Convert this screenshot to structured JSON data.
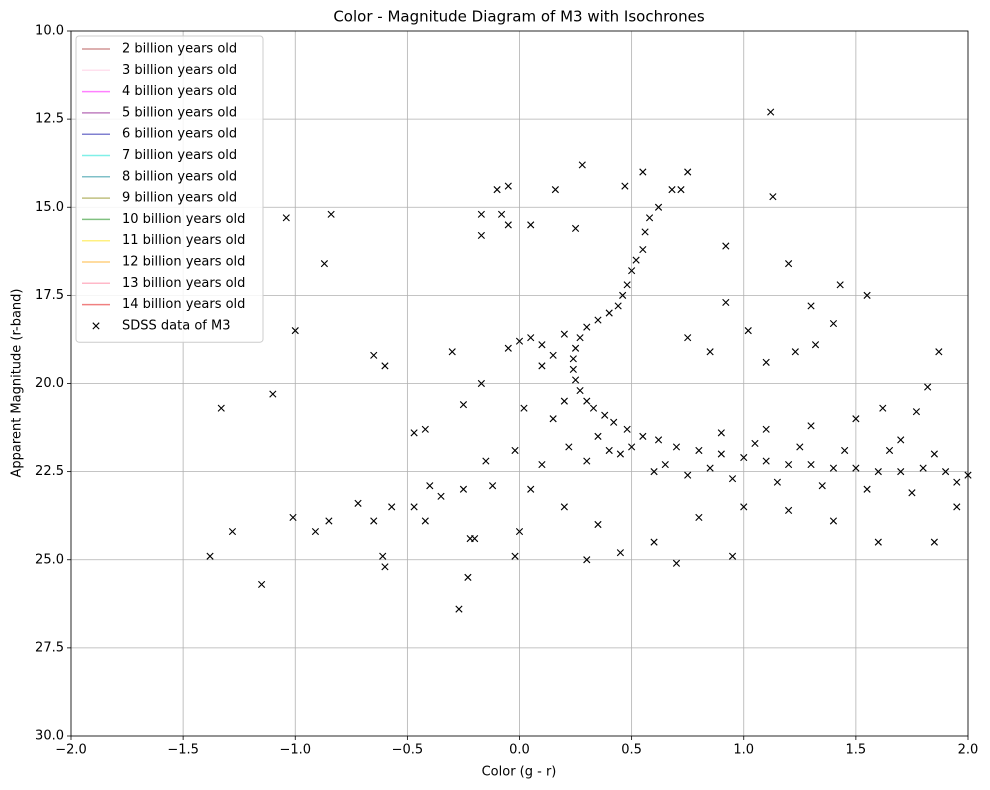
{
  "chart_data": {
    "type": "scatter",
    "title": "Color - Magnitude Diagram of M3 with Isochrones",
    "x_label": "Color (g - r)",
    "y_label": "Apparent Magnitude (r-band)",
    "xlim": [
      -2,
      2
    ],
    "ylim": [
      30,
      10
    ],
    "y_inverted": true,
    "grid": true,
    "legend": "upper left",
    "xticks": [
      {
        "value": -2,
        "label": "−2.0"
      },
      {
        "value": -1.5,
        "label": "−1.5"
      },
      {
        "value": -1,
        "label": "−1.0"
      },
      {
        "value": -0.5,
        "label": "−0.5"
      },
      {
        "value": 0,
        "label": "0.0"
      },
      0.5,
      {
        "value": 1,
        "label": "1.0"
      },
      1.5,
      {
        "value": 2,
        "label": "2.0"
      }
    ],
    "yticks": [
      {
        "value": 10,
        "label": "10.0"
      },
      12.5,
      {
        "value": 15,
        "label": "15.0"
      },
      17.5,
      {
        "value": 20,
        "label": "20.0"
      },
      22.5,
      {
        "value": 25,
        "label": "25.0"
      },
      27.5,
      {
        "value": 30,
        "label": "30.0"
      }
    ],
    "series": [
      {
        "name": "2 billion years old",
        "kind": "line",
        "color": "#d29595"
      },
      {
        "name": "3 billion years old",
        "kind": "line",
        "color": "#ffe0ee"
      },
      {
        "name": "4 billion years old",
        "kind": "line",
        "color": "#ff80ff"
      },
      {
        "name": "5 billion years old",
        "kind": "line",
        "color": "#c080c0"
      },
      {
        "name": "6 billion years old",
        "kind": "line",
        "color": "#8080d0"
      },
      {
        "name": "7 billion years old",
        "kind": "line",
        "color": "#80f0e8"
      },
      {
        "name": "8 billion years old",
        "kind": "line",
        "color": "#80c0c8"
      },
      {
        "name": "9 billion years old",
        "kind": "line",
        "color": "#c0c080"
      },
      {
        "name": "10 billion years old",
        "kind": "line",
        "color": "#80c080"
      },
      {
        "name": "11 billion years old",
        "kind": "line",
        "color": "#fff080"
      },
      {
        "name": "12 billion years old",
        "kind": "line",
        "color": "#ffd080"
      },
      {
        "name": "13 billion years old",
        "kind": "line",
        "color": "#ffb8c8"
      },
      {
        "name": "14 billion years old",
        "kind": "line",
        "color": "#f08080"
      },
      {
        "name": "SDSS data of M3",
        "kind": "scatter",
        "marker": "x",
        "color": "#000000",
        "x": [
          0.75,
          0.72,
          0.68,
          0.62,
          0.58,
          0.56,
          0.55,
          0.52,
          0.5,
          0.48,
          0.46,
          0.44,
          0.4,
          0.35,
          0.3,
          0.27,
          0.25,
          0.24,
          0.24,
          0.25,
          0.27,
          0.3,
          0.33,
          0.38,
          0.42,
          0.48,
          0.55,
          0.62,
          0.7,
          0.8,
          0.9,
          1.0,
          1.1,
          1.2,
          1.3,
          1.4,
          1.5,
          1.6,
          1.7,
          1.8,
          1.9,
          2.0,
          0.35,
          0.45,
          0.6,
          0.5,
          0.4,
          0.65,
          0.75,
          0.85,
          0.95,
          1.05,
          1.15,
          1.25,
          1.35,
          1.45,
          1.55,
          1.65,
          1.75,
          1.85,
          1.95,
          0.9,
          1.1,
          1.3,
          1.5,
          1.7,
          0.2,
          0.15,
          0.22,
          0.3,
          0.1,
          0.05,
          0.2,
          0.35,
          0.45,
          0.7,
          0.95,
          0.3,
          0.6,
          0.8,
          1.0,
          1.2,
          1.4,
          1.6,
          1.85,
          1.95,
          0.0,
          0.05,
          0.1,
          0.15,
          0.2,
          -0.05,
          0.1,
          1.12,
          0.28,
          0.55,
          0.47,
          0.16,
          -0.1,
          -0.05,
          1.13,
          -0.17,
          -0.17,
          -0.08,
          -0.05,
          0.05,
          0.25,
          -1.04,
          -0.84,
          -0.87,
          0.92,
          1.2,
          1.43,
          1.55,
          0.92,
          1.3,
          1.4,
          0.75,
          1.02,
          1.87,
          0.85,
          1.1,
          1.23,
          1.32,
          -1.0,
          -0.65,
          -0.6,
          -0.3,
          -0.17,
          -1.33,
          -1.1,
          -0.25,
          0.02,
          -0.47,
          -0.42,
          -0.15,
          -0.02,
          -0.12,
          -0.25,
          -0.35,
          -0.4,
          -0.72,
          -0.57,
          -0.47,
          -0.42,
          -0.65,
          -0.85,
          -1.01,
          -0.91,
          -1.28,
          -1.38,
          -0.61,
          -0.6,
          -1.15,
          -0.22,
          -0.2,
          -0.02,
          -0.23,
          -0.27,
          0.0,
          1.82,
          1.62,
          1.77
        ],
        "values": [
          14.0,
          14.5,
          14.5,
          15.0,
          15.3,
          15.7,
          16.2,
          16.5,
          16.8,
          17.2,
          17.5,
          17.8,
          18.0,
          18.2,
          18.4,
          18.7,
          19.0,
          19.3,
          19.6,
          19.9,
          20.2,
          20.5,
          20.7,
          20.9,
          21.1,
          21.3,
          21.5,
          21.6,
          21.8,
          21.9,
          22.0,
          22.1,
          22.2,
          22.3,
          22.3,
          22.4,
          22.4,
          22.5,
          22.5,
          22.4,
          22.5,
          22.6,
          21.5,
          22.0,
          22.5,
          21.8,
          21.9,
          22.3,
          22.6,
          22.4,
          22.7,
          21.7,
          22.8,
          21.8,
          22.9,
          21.9,
          23.0,
          21.9,
          23.1,
          22.0,
          22.8,
          21.4,
          21.3,
          21.2,
          21.0,
          21.6,
          20.5,
          21.0,
          21.8,
          22.2,
          22.3,
          23.0,
          23.5,
          24.0,
          24.8,
          25.1,
          24.9,
          25.0,
          24.5,
          23.8,
          23.5,
          23.6,
          23.9,
          24.5,
          24.5,
          23.5,
          18.8,
          18.7,
          18.9,
          19.2,
          18.6,
          19.0,
          19.5,
          12.3,
          13.8,
          14.0,
          14.4,
          14.5,
          14.5,
          14.4,
          14.7,
          15.2,
          15.8,
          15.2,
          15.5,
          15.5,
          15.6,
          15.3,
          15.2,
          16.6,
          16.1,
          16.6,
          17.2,
          17.5,
          17.7,
          17.8,
          18.3,
          18.7,
          18.5,
          19.1,
          19.1,
          19.4,
          19.1,
          18.9,
          18.5,
          19.2,
          19.5,
          19.1,
          20.0,
          20.7,
          20.3,
          20.6,
          20.7,
          21.4,
          21.3,
          22.2,
          21.9,
          22.9,
          23.0,
          23.2,
          22.9,
          23.4,
          23.5,
          23.5,
          23.9,
          23.9,
          23.9,
          23.8,
          24.2,
          24.2,
          24.9,
          24.9,
          25.2,
          25.7,
          24.4,
          24.4,
          24.9,
          25.5,
          26.4,
          24.2,
          20.1,
          20.7,
          20.8
        ]
      }
    ]
  }
}
